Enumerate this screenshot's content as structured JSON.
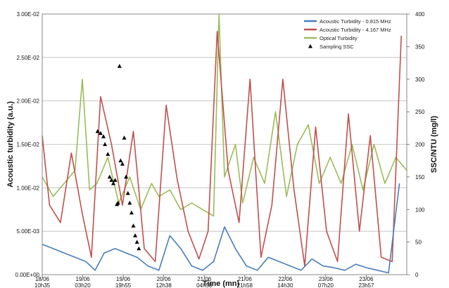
{
  "chart_data": {
    "type": "line",
    "title": "",
    "xlabel": "Time (mn)",
    "ylabel_left": "Acoustic turbidity (a.u.)",
    "ylabel_right": "SSC/NTU (mg/l)",
    "ylim_left": [
      0,
      0.03
    ],
    "ylim_right": [
      0,
      400
    ],
    "left_ticks": [
      "0.00E+00",
      "5.00E-03",
      "1.00E-02",
      "1.50E-02",
      "2.00E-02",
      "2.50E-02",
      "3.00E-02"
    ],
    "right_ticks": [
      "0",
      "50",
      "100",
      "150",
      "200",
      "250",
      "300",
      "350",
      "400"
    ],
    "x_ticks": [
      {
        "date": "18/06",
        "time": "10h35"
      },
      {
        "date": "19/06",
        "time": "03h20"
      },
      {
        "date": "19/06",
        "time": "19h55"
      },
      {
        "date": "20/06",
        "time": "12h38"
      },
      {
        "date": "21/06",
        "time": "04h58"
      },
      {
        "date": "21/06",
        "time": "21h58"
      },
      {
        "date": "22/06",
        "time": "14h30"
      },
      {
        "date": "23/06",
        "time": "07h20"
      },
      {
        "date": "23/06",
        "time": "23h57"
      }
    ],
    "grid": {
      "horizontal": true,
      "vertical": false
    },
    "legend_position": "top-right",
    "x_range": [
      0,
      10
    ],
    "series": [
      {
        "name": "Acoustic Turbidity - 0.815 MHz",
        "axis": "left",
        "color": "#4a7ebb",
        "x": [
          0,
          0.3,
          0.6,
          0.9,
          1.2,
          1.45,
          1.7,
          2.0,
          2.3,
          2.6,
          2.9,
          3.2,
          3.5,
          3.8,
          4.1,
          4.4,
          4.7,
          5.0,
          5.3,
          5.6,
          5.9,
          6.2,
          6.5,
          6.8,
          7.1,
          7.4,
          7.7,
          8.0,
          8.3,
          8.6,
          8.9,
          9.2,
          9.5,
          9.8
        ],
        "y": [
          0.0035,
          0.003,
          0.0025,
          0.002,
          0.0015,
          0.0005,
          0.0025,
          0.003,
          0.0025,
          0.002,
          0.001,
          0.0005,
          0.0045,
          0.003,
          0.001,
          0.0005,
          0.0015,
          0.0055,
          0.003,
          0.001,
          0.0005,
          0.002,
          0.0015,
          0.001,
          0.0005,
          0.0018,
          0.001,
          0.0008,
          0.0005,
          0.0012,
          0.0008,
          0.0005,
          0.0002,
          0.0105
        ]
      },
      {
        "name": "Acoustic Turbidity - 4.167 MHz",
        "axis": "left",
        "color": "#c0504d",
        "x": [
          0,
          0.2,
          0.5,
          0.8,
          1.1,
          1.35,
          1.6,
          1.9,
          2.2,
          2.5,
          2.8,
          3.1,
          3.4,
          3.7,
          4.0,
          4.3,
          4.55,
          4.8,
          5.1,
          5.4,
          5.7,
          6.0,
          6.3,
          6.6,
          6.9,
          7.2,
          7.5,
          7.8,
          8.1,
          8.4,
          8.7,
          9.0,
          9.3,
          9.6,
          9.85
        ],
        "y": [
          0.016,
          0.008,
          0.006,
          0.014,
          0.007,
          0.002,
          0.0205,
          0.015,
          0.008,
          0.0165,
          0.003,
          0.0015,
          0.0195,
          0.011,
          0.005,
          0.0018,
          0.005,
          0.028,
          0.012,
          0.006,
          0.0225,
          0.002,
          0.008,
          0.0225,
          0.01,
          0.001,
          0.017,
          0.005,
          0.0015,
          0.0185,
          0.005,
          0.016,
          0.002,
          0.0015,
          0.0275
        ]
      },
      {
        "name": "Optical Turbidity",
        "axis": "right",
        "color": "#9bbb59",
        "x": [
          0,
          0.3,
          0.6,
          0.9,
          1.1,
          1.3,
          1.5,
          1.8,
          2.1,
          2.4,
          2.7,
          3.0,
          3.2,
          3.5,
          3.8,
          4.1,
          4.4,
          4.7,
          4.85,
          5.0,
          5.3,
          5.5,
          5.8,
          6.1,
          6.4,
          6.7,
          7.0,
          7.3,
          7.6,
          7.9,
          8.2,
          8.5,
          8.8,
          9.1,
          9.4,
          9.7,
          10.0
        ],
        "y": [
          150,
          120,
          140,
          160,
          300,
          130,
          140,
          180,
          110,
          150,
          100,
          140,
          120,
          130,
          100,
          110,
          100,
          90,
          400,
          150,
          200,
          110,
          180,
          140,
          250,
          120,
          200,
          230,
          140,
          180,
          140,
          200,
          130,
          200,
          140,
          180,
          160
        ]
      }
    ],
    "markers": {
      "name": "Sampling SSC",
      "axis": "right",
      "color": "#000000",
      "x": [
        1.52,
        1.6,
        1.68,
        1.72,
        1.8,
        1.85,
        1.9,
        1.95,
        2.0,
        2.05,
        2.08,
        2.12,
        2.15,
        2.2,
        2.25,
        2.3,
        2.35,
        2.4,
        2.45,
        2.5,
        2.55,
        2.6,
        2.65
      ],
      "y": [
        220,
        217,
        212,
        200,
        185,
        150,
        145,
        140,
        145,
        108,
        110,
        320,
        175,
        170,
        210,
        150,
        125,
        110,
        95,
        75,
        60,
        50,
        40
      ]
    }
  }
}
